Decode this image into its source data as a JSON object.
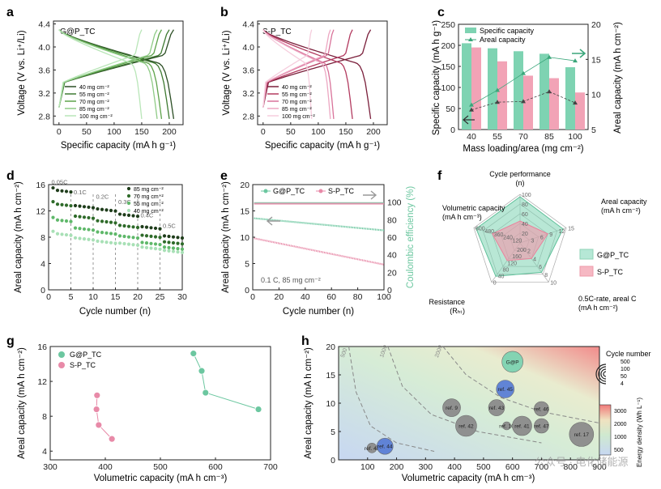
{
  "panel_labels": [
    "a",
    "b",
    "c",
    "d",
    "e",
    "f",
    "g",
    "h"
  ],
  "colors": {
    "green_dark": "#2b4e24",
    "green_mid": "#3f7a32",
    "green_light": "#5da24a",
    "green_pale": "#8fcb86",
    "green_faint": "#b9e6b8",
    "pink_dark": "#7a1f3b",
    "pink_mid": "#b23a5f",
    "pink_light": "#d9739a",
    "pink_pale": "#eca7c2",
    "pink_faint": "#f5cddd",
    "bar_green": "#7ed3b2",
    "bar_pink": "#f2a3b6",
    "line_green": "#3aa67a",
    "line_dark": "#444444"
  },
  "chart_data": [
    {
      "panel": "a",
      "type": "line",
      "title": "G@P_TC",
      "xlabel": "Specific capacity (mA h g⁻¹)",
      "ylabel": "Voltage (V vs. Li⁺/Li)",
      "xlim": [
        -10,
        225
      ],
      "ylim": [
        2.65,
        4.45
      ],
      "xticks": [
        0,
        50,
        100,
        150,
        200
      ],
      "yticks": [
        2.8,
        3.2,
        3.6,
        4.0,
        4.4
      ],
      "series": [
        {
          "name": "40 mg cm⁻²",
          "color": "#2b4e24",
          "capacity": 208
        },
        {
          "name": "55 mg cm⁻²",
          "color": "#3f7a32",
          "capacity": 200
        },
        {
          "name": "70 mg cm⁻²",
          "color": "#5da24a",
          "capacity": 186
        },
        {
          "name": "85 mg cm⁻²",
          "color": "#8fcb86",
          "capacity": 178
        },
        {
          "name": "100 mg cm⁻²",
          "color": "#b9e6b8",
          "capacity": 150
        }
      ]
    },
    {
      "panel": "b",
      "type": "line",
      "title": "S-P_TC",
      "xlabel": "Specific capacity (mA h g⁻¹)",
      "ylabel": "Voltage (V vs. Li⁺/Li)",
      "xlim": [
        -10,
        225
      ],
      "ylim": [
        2.65,
        4.45
      ],
      "xticks": [
        0,
        50,
        100,
        150,
        200
      ],
      "yticks": [
        2.8,
        3.2,
        3.6,
        4.0,
        4.4
      ],
      "series": [
        {
          "name": "40 mg cm⁻²",
          "color": "#7a1f3b",
          "capacity": 195
        },
        {
          "name": "55 mg cm⁻²",
          "color": "#b23a5f",
          "capacity": 162
        },
        {
          "name": "70 mg cm⁻²",
          "color": "#d9739a",
          "capacity": 128
        },
        {
          "name": "85 mg cm⁻²",
          "color": "#eca7c2",
          "capacity": 122
        },
        {
          "name": "100 mg cm⁻²",
          "color": "#f5cddd",
          "capacity": 88
        }
      ]
    },
    {
      "panel": "c",
      "type": "bar",
      "xlabel": "Mass loading/area (mg cm⁻²)",
      "ylabel": "Specific capacity (mA h g⁻¹)",
      "ylabel_right": "Areal capacity (mA h cm⁻²)",
      "categories": [
        "40",
        "55",
        "70",
        "85",
        "100"
      ],
      "ylim": [
        0,
        250
      ],
      "yticks": [
        0,
        50,
        100,
        150,
        200,
        250
      ],
      "ylim_right": [
        5,
        20
      ],
      "yticks_right": [
        5,
        10,
        15,
        20
      ],
      "legend": [
        "Specific capacity",
        "Areal capacity"
      ],
      "series": [
        {
          "name": "G@P_TC specific",
          "values": [
            205,
            193,
            186,
            180,
            148
          ],
          "color": "#7ed3b2"
        },
        {
          "name": "S-P_TC specific",
          "values": [
            195,
            162,
            128,
            122,
            88
          ],
          "color": "#f2a3b6"
        },
        {
          "name": "G@P_TC areal",
          "values": [
            8.5,
            10.6,
            13.0,
            15.3,
            14.8
          ],
          "color": "#3aa67a"
        },
        {
          "name": "S-P_TC areal",
          "values": [
            7.8,
            8.9,
            9.0,
            10.4,
            8.8
          ],
          "color": "#444444"
        }
      ]
    },
    {
      "panel": "d",
      "type": "scatter",
      "xlabel": "Cycle number (n)",
      "ylabel": "Areal capacity (mA h cm⁻²)",
      "xlim": [
        0,
        30
      ],
      "ylim": [
        0,
        16
      ],
      "xticks": [
        0,
        5,
        10,
        15,
        20,
        25,
        30
      ],
      "yticks": [
        0,
        4,
        8,
        12,
        16
      ],
      "rates": [
        "0.05C",
        "0.1C",
        "0.2C",
        "0.3C",
        "0.4C",
        "0.5C"
      ],
      "series": [
        {
          "name": "85 mg cm⁻²",
          "color": "#1f3d1b",
          "values": [
            15.2,
            12.8,
            12.3,
            11.5,
            9.6,
            8.2
          ]
        },
        {
          "name": "70 mg cm⁻²",
          "color": "#2f6b2a",
          "values": [
            13.1,
            11.2,
            10.5,
            9.8,
            8.3,
            7.3
          ]
        },
        {
          "name": "55 mg cm⁻²",
          "color": "#5fb86a",
          "values": [
            10.7,
            9.4,
            8.8,
            8.2,
            7.2,
            6.5
          ]
        },
        {
          "name": "40 mg cm⁻²",
          "color": "#a8e0b6",
          "values": [
            8.6,
            7.9,
            7.4,
            7.1,
            6.5,
            6.0
          ]
        }
      ]
    },
    {
      "panel": "e",
      "type": "scatter",
      "xlabel": "Cycle number (n)",
      "ylabel": "Areal capacity (mA h cm⁻²)",
      "ylabel_right": "Coulombic efficiency (%)",
      "xlim": [
        0,
        100
      ],
      "ylim": [
        0,
        20
      ],
      "xticks": [
        0,
        20,
        40,
        60,
        80,
        100
      ],
      "yticks": [
        0,
        5,
        10,
        15,
        20
      ],
      "yticks_right": [
        0,
        20,
        40,
        60,
        80,
        100
      ],
      "annotation": "0.1 C, 85 mg cm⁻²",
      "series": [
        {
          "name": "G@P_TC",
          "color": "#6cc7a0",
          "start": 13.6,
          "end": 11.3,
          "ce": 99
        },
        {
          "name": "S-P_TC",
          "color": "#e88aa8",
          "start": 9.8,
          "end": 4.8,
          "ce": 99
        }
      ]
    },
    {
      "panel": "f",
      "type": "radar",
      "axes": [
        "Cycle performance (n)",
        "Areal capacity (mA h cm⁻²)",
        "0.5C-rate, areal C (mA h cm⁻²)",
        "Resistance (Rₕₜ)",
        "Volumetric capacity (mA h cm⁻³)"
      ],
      "axis_ticks": [
        [
          "100",
          "80",
          "60",
          "40",
          "20"
        ],
        [
          "15",
          "12",
          "9",
          "6",
          "3"
        ],
        [
          "10",
          "8",
          "6",
          "4",
          "2"
        ],
        [
          "0",
          "40",
          "80",
          "120",
          "160",
          "200"
        ],
        [
          "600",
          "480",
          "360",
          "240",
          "120"
        ]
      ],
      "legend": [
        "G@P_TC",
        "S-P_TC"
      ],
      "series": [
        {
          "name": "G@P_TC",
          "fractions": [
            0.95,
            0.93,
            0.75,
            0.85,
            0.95
          ]
        },
        {
          "name": "S-P_TC",
          "fractions": [
            0.45,
            0.6,
            0.4,
            0.45,
            0.6
          ]
        }
      ]
    },
    {
      "panel": "g",
      "type": "scatter",
      "xlabel": "Volumetric capacity (mA h cm⁻³)",
      "ylabel": "Areal capacity (mA h cm⁻²)",
      "xlim": [
        300,
        700
      ],
      "ylim": [
        3,
        16
      ],
      "xticks": [
        300,
        400,
        500,
        600,
        700
      ],
      "yticks": [
        4,
        8,
        12,
        16
      ],
      "legend": [
        "G@P_TC",
        "S-P_TC"
      ],
      "series": [
        {
          "name": "G@P_TC",
          "color": "#6cc7a0",
          "x": [
            560,
            575,
            582,
            678
          ],
          "y": [
            15.2,
            13.2,
            10.7,
            8.8
          ]
        },
        {
          "name": "S-P_TC",
          "color": "#e88aa8",
          "x": [
            385,
            384,
            388,
            412
          ],
          "y": [
            10.4,
            8.8,
            7.0,
            5.4
          ]
        }
      ]
    },
    {
      "panel": "h",
      "type": "scatter",
      "xlabel": "Volumetric capacity (mA h cm⁻³)",
      "ylabel": "Areal capacity (mA h cm⁻²)",
      "xlim": [
        0,
        900
      ],
      "ylim": [
        0,
        20
      ],
      "xticks": [
        100,
        200,
        300,
        400,
        500,
        600,
        700,
        800,
        900
      ],
      "yticks": [
        0,
        5,
        10,
        15,
        20
      ],
      "contours": [
        "500",
        "1000",
        "2000"
      ],
      "size_legend_title": "Cycle number",
      "size_legend": [
        "500",
        "100",
        "50",
        "4"
      ],
      "colorbar_label": "Energy density (Wh L⁻¹)",
      "colorbar_ticks": [
        "3000",
        "2000",
        "1000",
        "500"
      ],
      "watermark": "公众号 · 电化储能源",
      "points": [
        {
          "label": "G@P",
          "x": 600,
          "y": 17.3,
          "color": "#7ed3b2",
          "r": 13
        },
        {
          "label": "ref. 45",
          "x": 575,
          "y": 12.5,
          "color": "#5b7fd6",
          "r": 11
        },
        {
          "label": "ref. 9",
          "x": 390,
          "y": 9.2,
          "color": "#8c8c8c",
          "r": 11
        },
        {
          "label": "ref. 43",
          "x": 545,
          "y": 9.2,
          "color": "#8c8c8c",
          "r": 10
        },
        {
          "label": "ref. 46",
          "x": 700,
          "y": 9.0,
          "color": "#8c8c8c",
          "r": 9
        },
        {
          "label": "ref. 42",
          "x": 440,
          "y": 6.0,
          "color": "#8c8c8c",
          "r": 13
        },
        {
          "label": "ref. 10",
          "x": 580,
          "y": 6.0,
          "color": "#8c8c8c",
          "r": 5
        },
        {
          "label": "ref. 41",
          "x": 633,
          "y": 6.0,
          "color": "#8c8c8c",
          "r": 12
        },
        {
          "label": "ref. 47",
          "x": 700,
          "y": 6.0,
          "color": "#8c8c8c",
          "r": 9
        },
        {
          "label": "ref. 17",
          "x": 838,
          "y": 4.5,
          "color": "#8c8c8c",
          "r": 15
        },
        {
          "label": "ref. 48",
          "x": 115,
          "y": 2.1,
          "color": "#8c8c8c",
          "r": 6
        },
        {
          "label": "ref. 44",
          "x": 160,
          "y": 2.4,
          "color": "#5b7fd6",
          "r": 10
        }
      ]
    }
  ]
}
